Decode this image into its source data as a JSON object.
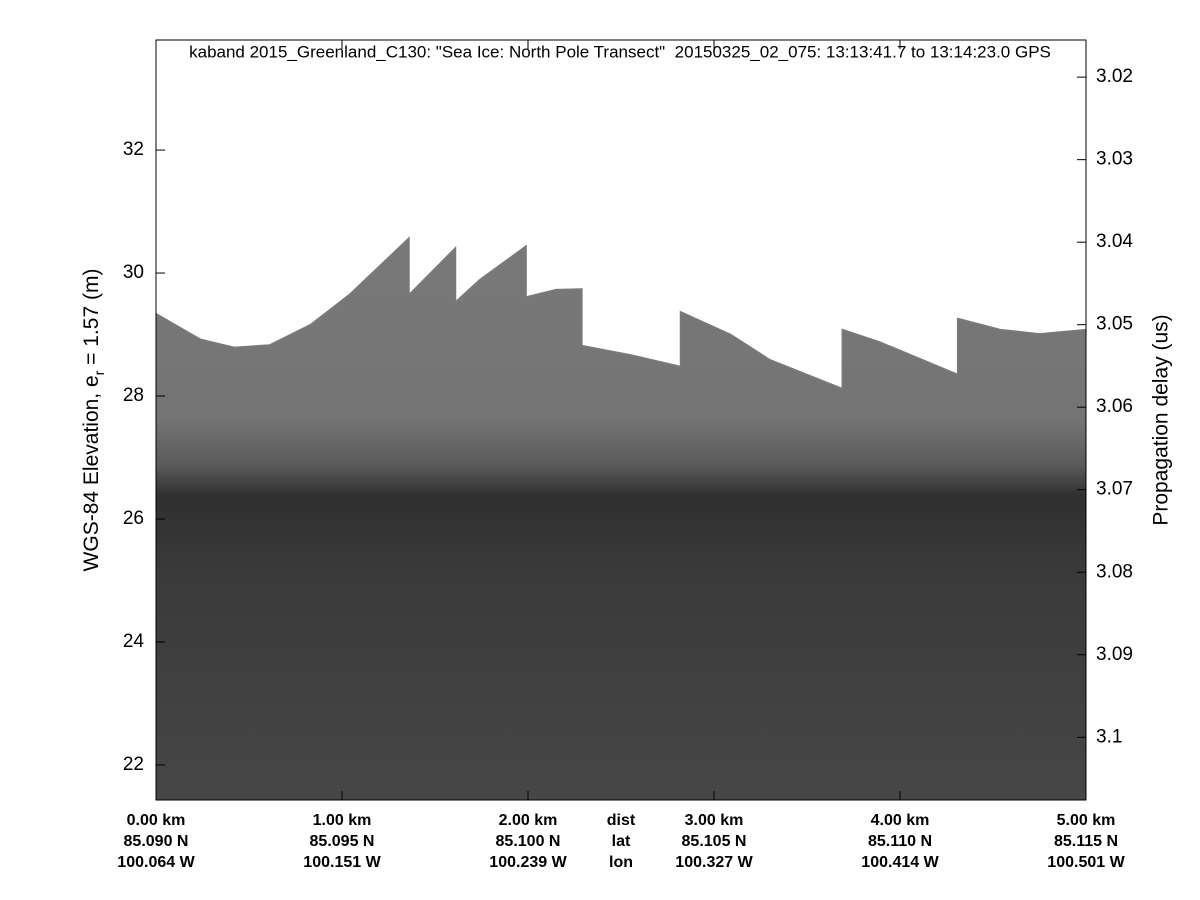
{
  "chart_data": {
    "type": "echogram",
    "title": "kaband 2015_Greenland_C130: \"Sea Ice: North Pole Transect\"  20150325_02_075: 13:13:41.7 to 13:14:23.0 GPS",
    "ylabel_parts": [
      "WGS-84 Elevation, e",
      "r",
      " = 1.57 (m)"
    ],
    "y2label": "Propagation delay (us)",
    "xlim": [
      0,
      5
    ],
    "xticks": [
      {
        "value": 0,
        "label": "0.00 km"
      },
      {
        "value": 1,
        "label": "1.00 km"
      },
      {
        "value": 2,
        "label": "2.00 km"
      },
      {
        "value": 3,
        "label": "3.00 km"
      },
      {
        "value": 4,
        "label": "4.00 km"
      },
      {
        "value": 5,
        "label": "5.00 km"
      }
    ],
    "lat_labels": [
      "85.090 N",
      "85.095 N",
      "85.100 N",
      "85.105 N",
      "85.110 N",
      "85.115 N"
    ],
    "lon_labels": [
      "100.064 W",
      "100.151 W",
      "100.239 W",
      "100.327 W",
      "100.414 W",
      "100.501 W"
    ],
    "row_names": [
      "dist",
      "lat",
      "lon"
    ],
    "ylim": [
      21.43,
      33.79
    ],
    "yticks": [
      22,
      24,
      26,
      28,
      30,
      32
    ],
    "y2lim": [
      3.1076,
      3.0155
    ],
    "y2ticks": [
      3.02,
      3.03,
      3.04,
      3.05,
      3.06,
      3.07,
      3.08,
      3.09,
      3.1
    ],
    "surface": {
      "color": "#7a7a7a",
      "x": [
        0,
        0.24,
        0.42,
        0.61,
        0.83,
        1.04,
        1.36,
        1.36,
        1.61,
        1.61,
        1.74,
        1.99,
        1.99,
        2.15,
        2.29,
        2.29,
        2.55,
        2.82,
        2.82,
        3.09,
        3.3,
        3.69,
        3.69,
        3.89,
        4.31,
        4.31,
        4.54,
        4.75,
        5.0
      ],
      "values": [
        29.34,
        28.92,
        28.79,
        28.83,
        29.16,
        29.65,
        30.57,
        29.65,
        30.41,
        29.53,
        29.89,
        30.44,
        29.61,
        29.73,
        29.74,
        28.82,
        28.67,
        28.48,
        29.37,
        29.0,
        28.59,
        28.12,
        29.08,
        28.88,
        28.35,
        29.26,
        29.08,
        29.01,
        29.08
      ]
    }
  }
}
